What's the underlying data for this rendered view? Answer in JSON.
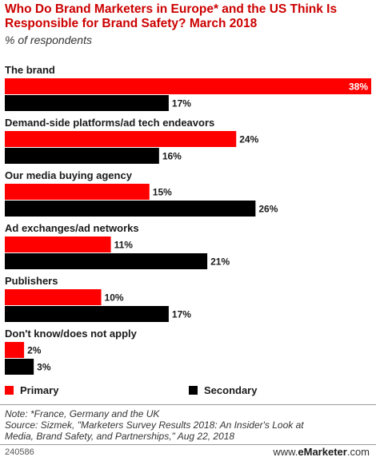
{
  "title": "Who Do Brand Marketers in Europe* and the US Think Is Responsible for Brand Safety? March 2018",
  "subtitle": "% of respondents",
  "colors": {
    "primary": "#ff0000",
    "secondary": "#000000",
    "title": "#cc0000"
  },
  "chart_data": {
    "type": "bar",
    "orientation": "horizontal",
    "categories": [
      "The brand",
      "Demand-side platforms/ad tech endeavors",
      "Our media buying agency",
      "Ad exchanges/ad networks",
      "Publishers",
      "Don't know/does not apply"
    ],
    "series": [
      {
        "name": "Primary",
        "values": [
          38,
          24,
          15,
          11,
          10,
          2
        ]
      },
      {
        "name": "Secondary",
        "values": [
          17,
          16,
          26,
          21,
          17,
          3
        ]
      }
    ],
    "value_suffix": "%",
    "xlim": [
      0,
      38
    ],
    "grid": false,
    "legend_position": "bottom"
  },
  "legend": {
    "primary_label": "Primary",
    "secondary_label": "Secondary"
  },
  "notes": {
    "note": "Note: *France, Germany and the UK",
    "source_line1": "Source: Sizmek, \"Marketers Survey Results 2018: An Insider's Look at",
    "source_line2": "Media, Brand Safety, and Partnerships,\" Aug 22, 2018"
  },
  "footer": {
    "chart_id": "240586",
    "brand_prefix": "www.",
    "brand_name": "eMarketer",
    "brand_suffix": ".com"
  }
}
